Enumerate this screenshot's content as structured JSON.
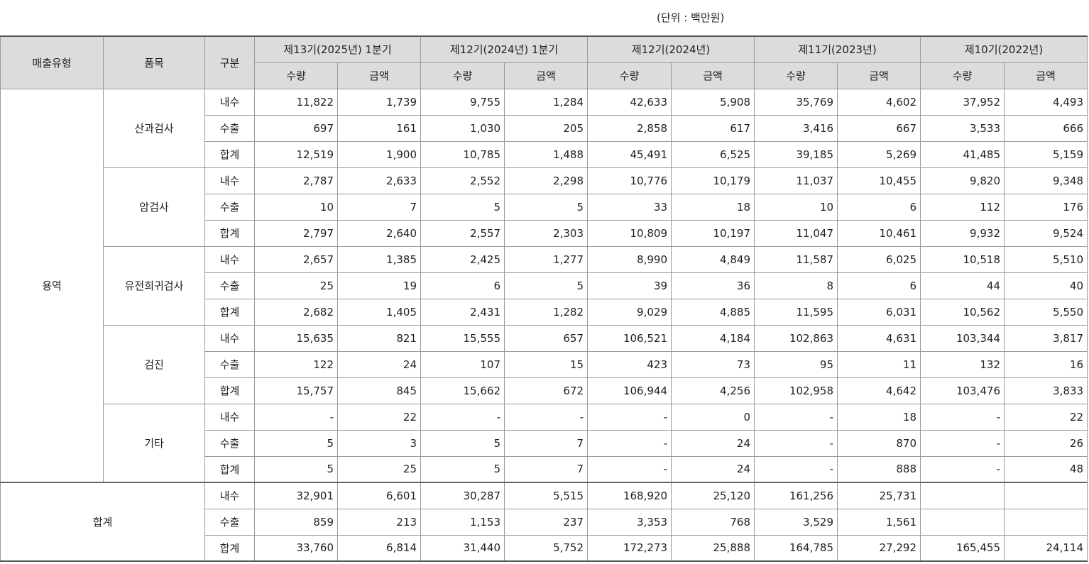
{
  "unit_label": "(단위 : 백만원)",
  "header": {
    "sales_type": "매출유형",
    "item": "품목",
    "division": "구분",
    "periods": [
      "제13기(2025년) 1분기",
      "제12기(2024년) 1분기",
      "제12기(2024년)",
      "제11기(2023년)",
      "제10기(2022년)"
    ],
    "qty": "수량",
    "amount": "금액"
  },
  "sales_type_service": "용역",
  "total_label": "합계",
  "groups": [
    {
      "item": "산과검사",
      "rows": [
        {
          "division": "내수",
          "values": [
            "11,822",
            "1,739",
            "9,755",
            "1,284",
            "42,633",
            "5,908",
            "35,769",
            "4,602",
            "37,952",
            "4,493"
          ]
        },
        {
          "division": "수출",
          "values": [
            "697",
            "161",
            "1,030",
            "205",
            "2,858",
            "617",
            "3,416",
            "667",
            "3,533",
            "666"
          ]
        },
        {
          "division": "합계",
          "values": [
            "12,519",
            "1,900",
            "10,785",
            "1,488",
            "45,491",
            "6,525",
            "39,185",
            "5,269",
            "41,485",
            "5,159"
          ]
        }
      ]
    },
    {
      "item": "암검사",
      "rows": [
        {
          "division": "내수",
          "values": [
            "2,787",
            "2,633",
            "2,552",
            "2,298",
            "10,776",
            "10,179",
            "11,037",
            "10,455",
            "9,820",
            "9,348"
          ]
        },
        {
          "division": "수출",
          "values": [
            "10",
            "7",
            "5",
            "5",
            "33",
            "18",
            "10",
            "6",
            "112",
            "176"
          ]
        },
        {
          "division": "합계",
          "values": [
            "2,797",
            "2,640",
            "2,557",
            "2,303",
            "10,809",
            "10,197",
            "11,047",
            "10,461",
            "9,932",
            "9,524"
          ]
        }
      ]
    },
    {
      "item": "유전희귀검사",
      "rows": [
        {
          "division": "내수",
          "values": [
            "2,657",
            "1,385",
            "2,425",
            "1,277",
            "8,990",
            "4,849",
            "11,587",
            "6,025",
            "10,518",
            "5,510"
          ]
        },
        {
          "division": "수출",
          "values": [
            "25",
            "19",
            "6",
            "5",
            "39",
            "36",
            "8",
            "6",
            "44",
            "40"
          ]
        },
        {
          "division": "합계",
          "values": [
            "2,682",
            "1,405",
            "2,431",
            "1,282",
            "9,029",
            "4,885",
            "11,595",
            "6,031",
            "10,562",
            "5,550"
          ]
        }
      ]
    },
    {
      "item": "검진",
      "rows": [
        {
          "division": "내수",
          "values": [
            "15,635",
            "821",
            "15,555",
            "657",
            "106,521",
            "4,184",
            "102,863",
            "4,631",
            "103,344",
            "3,817"
          ]
        },
        {
          "division": "수출",
          "values": [
            "122",
            "24",
            "107",
            "15",
            "423",
            "73",
            "95",
            "11",
            "132",
            "16"
          ]
        },
        {
          "division": "합계",
          "values": [
            "15,757",
            "845",
            "15,662",
            "672",
            "106,944",
            "4,256",
            "102,958",
            "4,642",
            "103,476",
            "3,833"
          ]
        }
      ]
    },
    {
      "item": "기타",
      "rows": [
        {
          "division": "내수",
          "values": [
            "-",
            "22",
            "-",
            "-",
            "-",
            "0",
            "-",
            "18",
            "-",
            "22"
          ]
        },
        {
          "division": "수출",
          "values": [
            "5",
            "3",
            "5",
            "7",
            "-",
            "24",
            "-",
            "870",
            "-",
            "26"
          ]
        },
        {
          "division": "합계",
          "values": [
            "5",
            "25",
            "5",
            "7",
            "-",
            "24",
            "-",
            "888",
            "-",
            "48"
          ]
        }
      ]
    }
  ],
  "total_rows": [
    {
      "division": "내수",
      "values": [
        "32,901",
        "6,601",
        "30,287",
        "5,515",
        "168,920",
        "25,120",
        "161,256",
        "25,731",
        "",
        ""
      ]
    },
    {
      "division": "수출",
      "values": [
        "859",
        "213",
        "1,153",
        "237",
        "3,353",
        "768",
        "3,529",
        "1,561",
        "",
        ""
      ]
    },
    {
      "division": "합계",
      "values": [
        "33,760",
        "6,814",
        "31,440",
        "5,752",
        "172,273",
        "25,888",
        "164,785",
        "27,292",
        "165,455",
        "24,114"
      ]
    }
  ]
}
